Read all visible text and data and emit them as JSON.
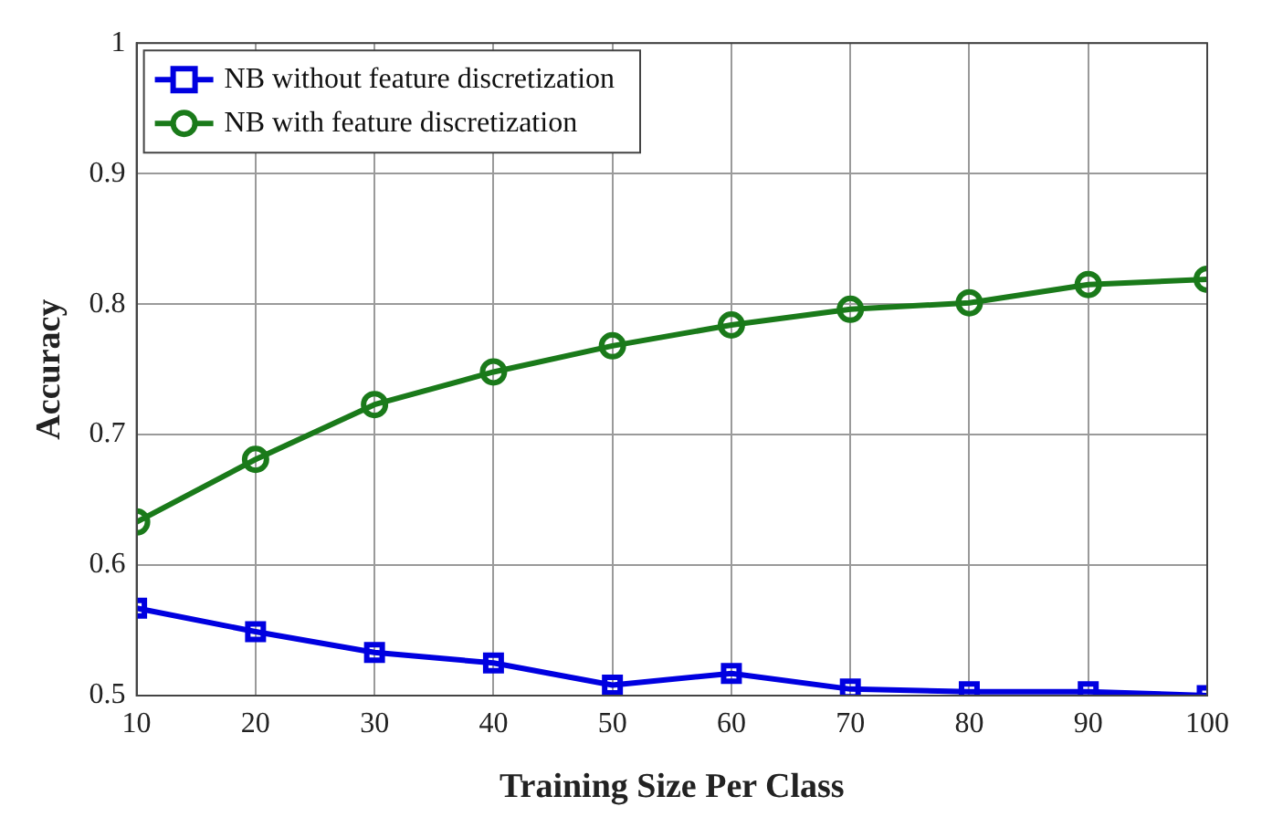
{
  "chart_data": {
    "type": "line",
    "xlabel": "Training Size Per Class",
    "ylabel": "Accuracy",
    "x": [
      10,
      20,
      30,
      40,
      50,
      60,
      70,
      80,
      90,
      100
    ],
    "xlim": [
      10,
      100
    ],
    "xticks": [
      10,
      20,
      30,
      40,
      50,
      60,
      70,
      80,
      90,
      100
    ],
    "ylim": [
      0.5,
      1
    ],
    "yticks": [
      0.5,
      0.6,
      0.7,
      0.8,
      0.9,
      1
    ],
    "grid": true,
    "legend": "top left",
    "line_style": "solid",
    "series": [
      {
        "name": "NB without feature discretization",
        "color": "#0000e0",
        "marker": "square",
        "values": [
          0.567,
          0.549,
          0.533,
          0.525,
          0.508,
          0.517,
          0.505,
          0.503,
          0.503,
          0.5
        ]
      },
      {
        "name": "NB with feature discretization",
        "color": "#1a7a1a",
        "marker": "circle",
        "values": [
          0.633,
          0.681,
          0.723,
          0.748,
          0.768,
          0.784,
          0.796,
          0.801,
          0.815,
          0.819
        ]
      }
    ]
  }
}
